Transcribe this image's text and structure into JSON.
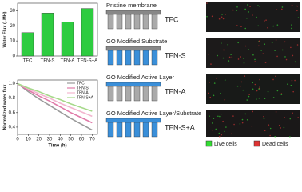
{
  "chart_data": [
    {
      "type": "bar",
      "ylabel": "Water Flux (LMH)",
      "categories": [
        "TFC",
        "TFN-S",
        "TFN-A",
        "TFN-S+A"
      ],
      "values": [
        15.5,
        28.5,
        22.5,
        31.5
      ],
      "color": "#2ecc40",
      "ylim": [
        0,
        35
      ],
      "yticks": [
        0,
        10,
        20,
        30
      ]
    },
    {
      "type": "line",
      "ylabel": "Normalized water flux",
      "xlabel": "Time (h)",
      "x": [
        0,
        10,
        20,
        30,
        40,
        50,
        60,
        70
      ],
      "series": [
        {
          "name": "TFC",
          "color": "#9a9a9a",
          "values": [
            1,
            0.89,
            0.79,
            0.7,
            0.61,
            0.52,
            0.44,
            0.36
          ]
        },
        {
          "name": "TFN-S",
          "color": "#e07aa8",
          "values": [
            1,
            0.91,
            0.83,
            0.76,
            0.68,
            0.6,
            0.53,
            0.46
          ]
        },
        {
          "name": "TFN-A",
          "color": "#f2b6cf",
          "values": [
            1,
            0.93,
            0.86,
            0.8,
            0.73,
            0.67,
            0.61,
            0.55
          ]
        },
        {
          "name": "TFN-S+A",
          "color": "#a6d98a",
          "values": [
            1,
            0.94,
            0.89,
            0.83,
            0.78,
            0.72,
            0.67,
            0.62
          ]
        }
      ],
      "xlim": [
        0,
        75
      ],
      "xticks": [
        0,
        10,
        20,
        30,
        40,
        50,
        60,
        70
      ],
      "ylim": [
        0.3,
        1.05
      ],
      "yticks": [
        0.4,
        0.6,
        0.8,
        {
          "value": 1,
          "label": "1.0"
        }
      ]
    }
  ],
  "diagram": {
    "panels": [
      {
        "heading": "Pristine membrane",
        "label": "TFC"
      },
      {
        "heading": "GO Modified  Substrate",
        "label": "TFN-S"
      },
      {
        "heading": "GO Modified  Active Layer",
        "label": "TFN-A"
      },
      {
        "heading": "GO Modified  Active Layer/Substrate",
        "label": "TFN-S+A"
      }
    ]
  },
  "cell_legend": [
    "Live cells",
    "Dead cells"
  ]
}
